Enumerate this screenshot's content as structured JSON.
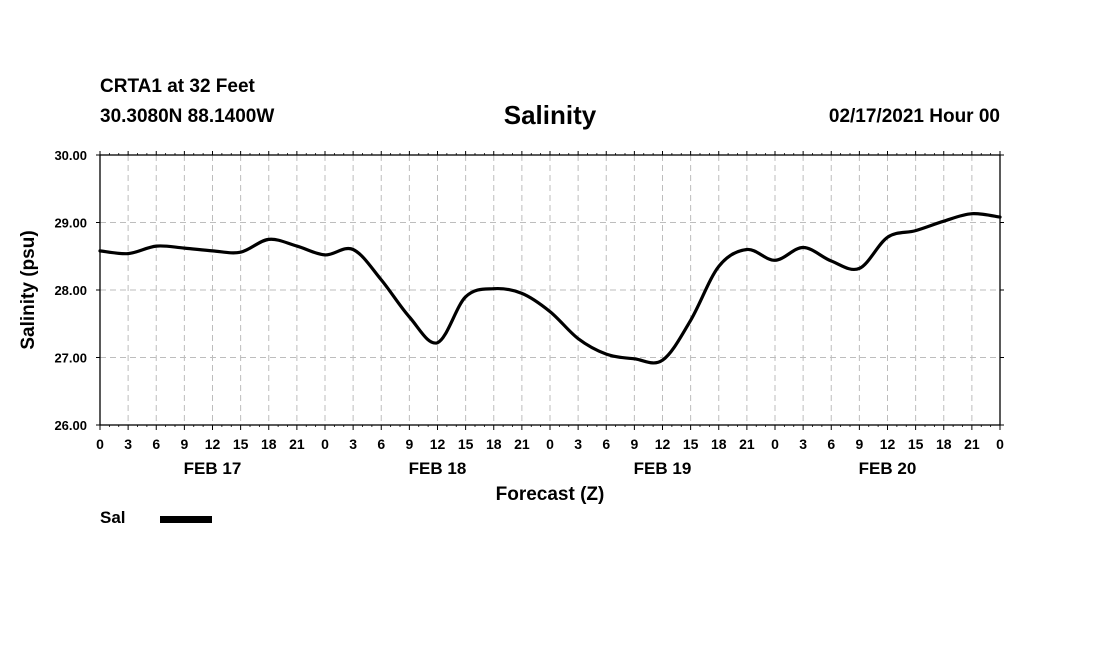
{
  "header": {
    "station": "CRTA1 at 32 Feet",
    "coords": "30.3080N 88.1400W",
    "stamp": "02/17/2021 Hour 00"
  },
  "chart_data": {
    "type": "line",
    "title": "Salinity",
    "xlabel": "Forecast (Z)",
    "ylabel": "Salinity (psu)",
    "ylim": [
      26.0,
      30.0
    ],
    "yticks": [
      "26.00",
      "27.00",
      "28.00",
      "29.00",
      "30.00"
    ],
    "xlim_hours": [
      0,
      96
    ],
    "xtick_labels": [
      "0",
      "3",
      "6",
      "9",
      "12",
      "15",
      "18",
      "21",
      "0",
      "3",
      "6",
      "9",
      "12",
      "15",
      "18",
      "21",
      "0",
      "3",
      "6",
      "9",
      "12",
      "15",
      "18",
      "21",
      "0",
      "3",
      "6",
      "9",
      "12",
      "15",
      "18",
      "21",
      "0"
    ],
    "date_labels": [
      {
        "label": "FEB 17",
        "hour": 12
      },
      {
        "label": "FEB 18",
        "hour": 36
      },
      {
        "label": "FEB 19",
        "hour": 60
      },
      {
        "label": "FEB 20",
        "hour": 84
      }
    ],
    "grid": true,
    "legend_position": "bottom-left",
    "series": [
      {
        "name": "Sal",
        "color": "#000000",
        "points": [
          [
            0,
            28.58
          ],
          [
            3,
            28.54
          ],
          [
            6,
            28.65
          ],
          [
            9,
            28.62
          ],
          [
            12,
            28.58
          ],
          [
            15,
            28.56
          ],
          [
            18,
            28.75
          ],
          [
            21,
            28.65
          ],
          [
            24,
            28.52
          ],
          [
            27,
            28.6
          ],
          [
            30,
            28.15
          ],
          [
            33,
            27.6
          ],
          [
            36,
            27.22
          ],
          [
            39,
            27.9
          ],
          [
            42,
            28.02
          ],
          [
            45,
            27.95
          ],
          [
            48,
            27.68
          ],
          [
            51,
            27.28
          ],
          [
            54,
            27.05
          ],
          [
            57,
            26.98
          ],
          [
            60,
            26.96
          ],
          [
            63,
            27.55
          ],
          [
            66,
            28.35
          ],
          [
            69,
            28.6
          ],
          [
            72,
            28.44
          ],
          [
            75,
            28.63
          ],
          [
            78,
            28.43
          ],
          [
            81,
            28.32
          ],
          [
            84,
            28.78
          ],
          [
            87,
            28.88
          ],
          [
            90,
            29.02
          ],
          [
            93,
            29.13
          ],
          [
            96,
            29.08
          ]
        ]
      }
    ]
  }
}
